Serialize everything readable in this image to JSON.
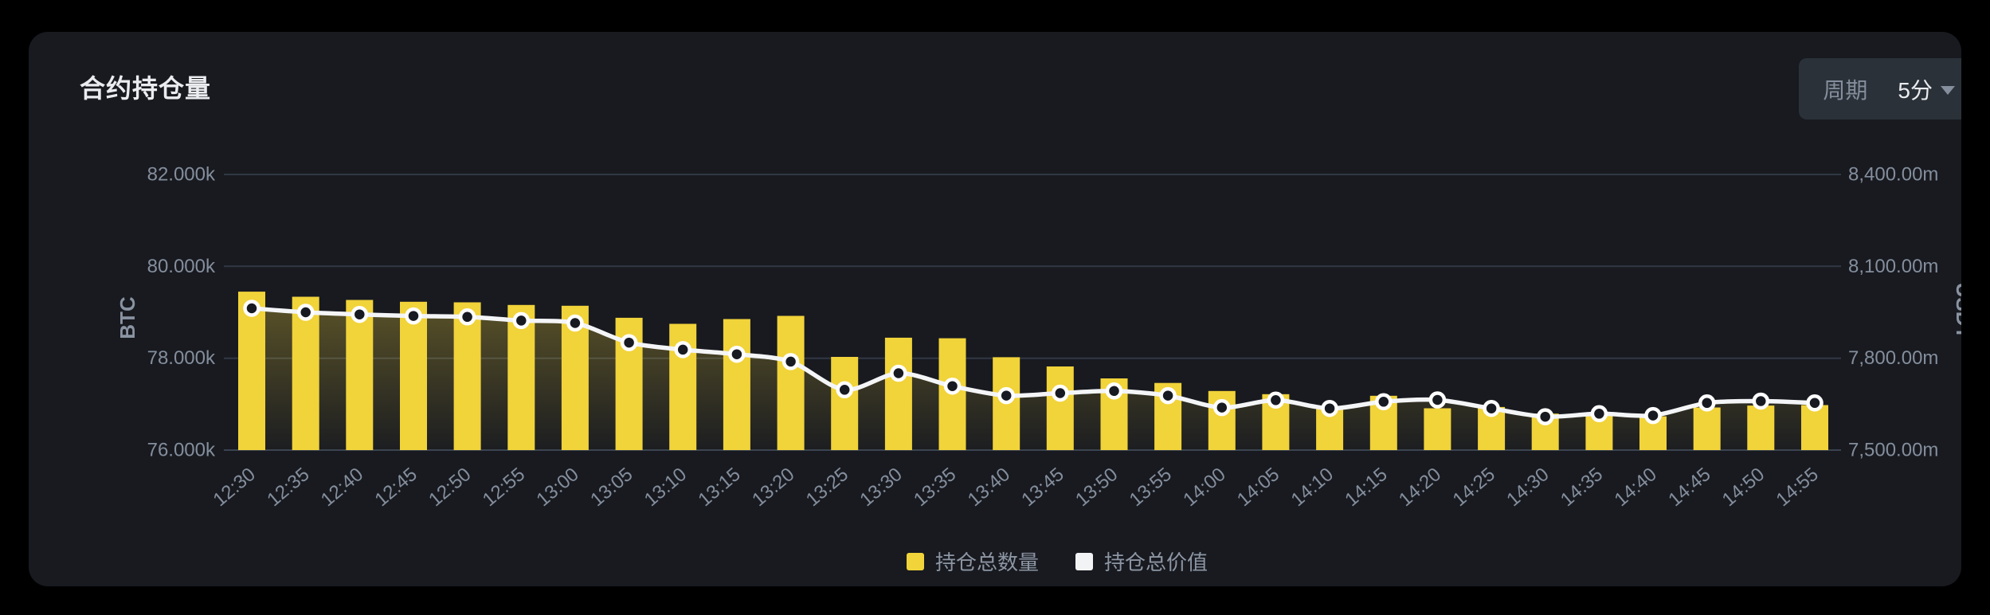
{
  "header": {
    "title": "合约持仓量",
    "period_label": "周期",
    "period_value": "5分"
  },
  "legend": [
    {
      "label": "持仓总数量",
      "color": "#F1D33A"
    },
    {
      "label": "持仓总价值",
      "color": "#F2F3F5"
    }
  ],
  "chart_data": {
    "type": "bar",
    "title": "合约持仓量",
    "categories": [
      "12:30",
      "12:35",
      "12:40",
      "12:45",
      "12:50",
      "12:55",
      "13:00",
      "13:05",
      "13:10",
      "13:15",
      "13:20",
      "13:25",
      "13:30",
      "13:35",
      "13:40",
      "13:45",
      "13:50",
      "13:55",
      "14:00",
      "14:05",
      "14:10",
      "14:15",
      "14:20",
      "14:25",
      "14:30",
      "14:35",
      "14:40",
      "14:45",
      "14:50",
      "14:55"
    ],
    "series": [
      {
        "name": "持仓总数量",
        "type": "bar",
        "axis": "left",
        "unit": "BTC",
        "color": "#F1D33A",
        "values": [
          79449,
          79339,
          79269,
          79229,
          79217,
          79160,
          79142,
          78881,
          78748,
          78852,
          78922,
          78029,
          78447,
          78435,
          78022,
          77821,
          77560,
          77461,
          77287,
          77217,
          76939,
          77182,
          76910,
          76939,
          76795,
          76765,
          76736,
          76927,
          76969,
          76979
        ]
      },
      {
        "name": "持仓总价值",
        "type": "line",
        "axis": "right",
        "unit": "USDT",
        "color": "#F2F3F5",
        "values": [
          7963,
          7950,
          7943,
          7938,
          7935,
          7923,
          7915,
          7851,
          7828,
          7813,
          7789,
          7697,
          7751,
          7709,
          7678,
          7686,
          7693,
          7678,
          7639,
          7663,
          7636,
          7658,
          7664,
          7636,
          7609,
          7619,
          7613,
          7654,
          7660,
          7654
        ]
      }
    ],
    "y_left": {
      "label": "BTC",
      "ticks": [
        "82.000k",
        "80.000k",
        "78.000k",
        "76.000k"
      ],
      "tick_values": [
        82000,
        80000,
        78000,
        76000
      ],
      "min": 76000,
      "max": 82000
    },
    "y_right": {
      "label": "USDT",
      "ticks": [
        "8,400.00m",
        "8,100.00m",
        "7,800.00m",
        "7,500.00m"
      ],
      "tick_values": [
        8400,
        8100,
        7800,
        7500
      ],
      "min": 7500,
      "max": 8400
    },
    "grid": true,
    "legend_position": "bottom"
  }
}
